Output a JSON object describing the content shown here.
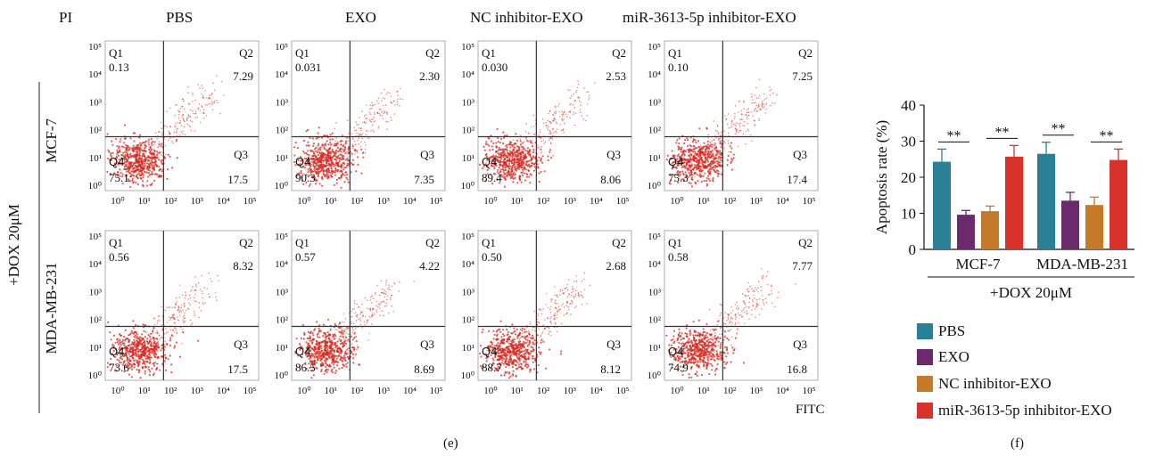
{
  "header": {
    "pi_label": "PI",
    "columns": [
      "PBS",
      "EXO",
      "NC inhibitor-EXO",
      "miR-3613-5p inhibitor-EXO"
    ],
    "rows": [
      "MCF-7",
      "MDA-MB-231"
    ],
    "treatment": "+DOX 20μM",
    "fitc_label": "FITC",
    "panel_e": "(e)",
    "panel_f": "(f)"
  },
  "colors": {
    "PBS": "#2a8096",
    "EXO": "#6b2a6c",
    "NC inhibitor-EXO": "#c47a28",
    "miR-3613-5p inhibitor-EXO": "#d8322a",
    "dots": "#d42a22"
  },
  "flow_tick_labels": [
    "10⁰",
    "10¹",
    "10²",
    "10³",
    "10⁴",
    "10⁵"
  ],
  "chart_data": [
    {
      "type": "scatter",
      "title": "Flow cytometry quadrant plots",
      "xlabel": "FITC",
      "ylabel": "PI",
      "quadrant_labels": [
        "Q1",
        "Q2",
        "Q3",
        "Q4"
      ],
      "panels": [
        {
          "row": "MCF-7",
          "column": "PBS",
          "Q1": "0.13",
          "Q2": "7.29",
          "Q3": "17.5",
          "Q4": "75.1"
        },
        {
          "row": "MCF-7",
          "column": "EXO",
          "Q1": "0.031",
          "Q2": "2.30",
          "Q3": "7.35",
          "Q4": "90.3"
        },
        {
          "row": "MCF-7",
          "column": "NC inhibitor-EXO",
          "Q1": "0.030",
          "Q2": "2.53",
          "Q3": "8.06",
          "Q4": "89.4"
        },
        {
          "row": "MCF-7",
          "column": "miR-3613-5p inhibitor-EXO",
          "Q1": "0.10",
          "Q2": "7.25",
          "Q3": "17.4",
          "Q4": "75.3"
        },
        {
          "row": "MDA-MB-231",
          "column": "PBS",
          "Q1": "0.56",
          "Q2": "8.32",
          "Q3": "17.5",
          "Q4": "73.6"
        },
        {
          "row": "MDA-MB-231",
          "column": "EXO",
          "Q1": "0.57",
          "Q2": "4.22",
          "Q3": "8.69",
          "Q4": "86.5"
        },
        {
          "row": "MDA-MB-231",
          "column": "NC inhibitor-EXO",
          "Q1": "0.50",
          "Q2": "2.68",
          "Q3": "8.12",
          "Q4": "88.7"
        },
        {
          "row": "MDA-MB-231",
          "column": "miR-3613-5p inhibitor-EXO",
          "Q1": "0.58",
          "Q2": "7.77",
          "Q3": "16.8",
          "Q4": "74.9"
        }
      ]
    },
    {
      "type": "bar",
      "title": "",
      "categories": [
        "MCF-7",
        "MDA-MB-231"
      ],
      "xlabel": "+DOX 20μM",
      "ylabel": "Apoptosis rate (%)",
      "ylim": [
        0,
        40
      ],
      "yticks": [
        0,
        10,
        20,
        30,
        40
      ],
      "series": [
        {
          "name": "PBS",
          "values": [
            24.3,
            26.5
          ],
          "errors": [
            3.5,
            3.2
          ]
        },
        {
          "name": "EXO",
          "values": [
            9.6,
            13.5
          ],
          "errors": [
            1.2,
            2.3
          ]
        },
        {
          "name": "NC inhibitor-EXO",
          "values": [
            10.6,
            12.3
          ],
          "errors": [
            1.4,
            2.2
          ]
        },
        {
          "name": "miR-3613-5p inhibitor-EXO",
          "values": [
            25.7,
            24.8
          ],
          "errors": [
            3.1,
            3.0
          ]
        }
      ],
      "significance": [
        {
          "category": "MCF-7",
          "between": [
            "PBS",
            "EXO"
          ],
          "label": "**"
        },
        {
          "category": "MCF-7",
          "between": [
            "NC inhibitor-EXO",
            "miR-3613-5p inhibitor-EXO"
          ],
          "label": "**"
        },
        {
          "category": "MDA-MB-231",
          "between": [
            "PBS",
            "EXO"
          ],
          "label": "**"
        },
        {
          "category": "MDA-MB-231",
          "between": [
            "NC inhibitor-EXO",
            "miR-3613-5p inhibitor-EXO"
          ],
          "label": "**"
        }
      ],
      "legend_position": "bottom"
    }
  ]
}
